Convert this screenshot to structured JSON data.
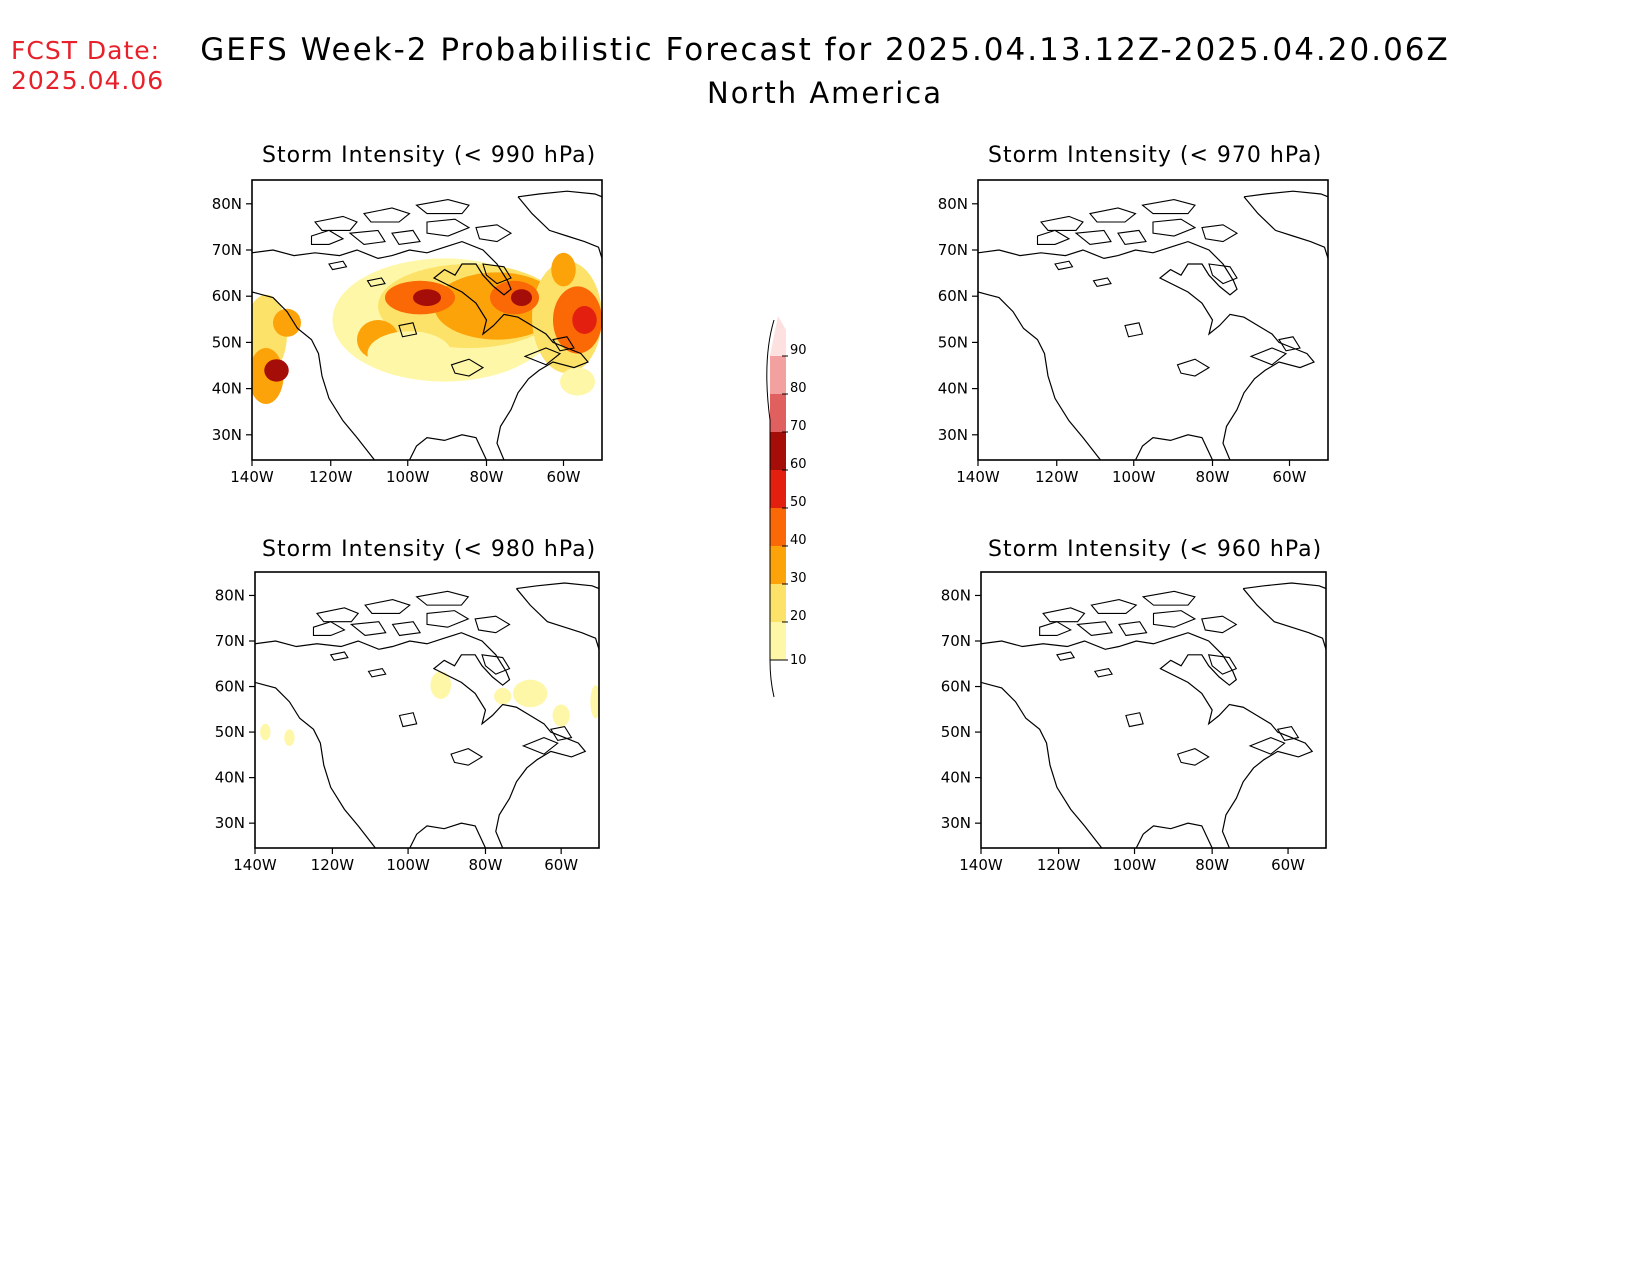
{
  "fcst": {
    "label": "FCST Date:",
    "date": "2025.04.06"
  },
  "title": {
    "line1": "GEFS Week-2 Probabilistic Forecast for 2025.04.13.12Z-2025.04.20.06Z",
    "line2": "North America"
  },
  "axes": {
    "lat_labels": [
      "80N",
      "70N",
      "60N",
      "50N",
      "40N",
      "30N"
    ],
    "lon_labels": [
      "140W",
      "120W",
      "100W",
      "80W",
      "60W"
    ]
  },
  "panels": [
    {
      "id": "p990",
      "title": "Storm Intensity (< 990 hPa)",
      "intensity": "high"
    },
    {
      "id": "p970",
      "title": "Storm Intensity (< 970 hPa)",
      "intensity": "none"
    },
    {
      "id": "p980",
      "title": "Storm Intensity (< 980 hPa)",
      "intensity": "low"
    },
    {
      "id": "p960",
      "title": "Storm Intensity (< 960 hPa)",
      "intensity": "none"
    }
  ],
  "colorbar": {
    "levels": [
      "10",
      "20",
      "30",
      "40",
      "50",
      "60",
      "70",
      "80",
      "90"
    ],
    "colors": [
      "#fff7a8",
      "#fde26a",
      "#fca30a",
      "#fb6806",
      "#e3200f",
      "#a50d08",
      "#e06060",
      "#f3a0a0",
      "#fde0e0"
    ]
  }
}
